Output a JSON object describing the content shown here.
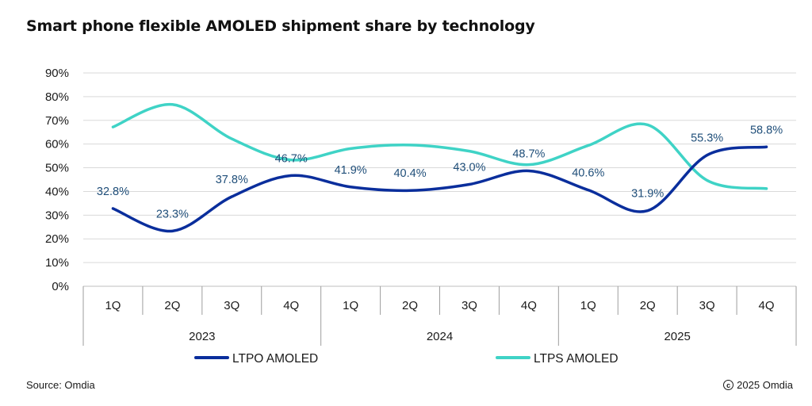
{
  "chart_data": {
    "type": "line",
    "title": "Smart phone flexible AMOLED shipment share by technology",
    "categories": [
      "1Q",
      "2Q",
      "3Q",
      "4Q",
      "1Q",
      "2Q",
      "3Q",
      "4Q",
      "1Q",
      "2Q",
      "3Q",
      "4Q"
    ],
    "years": [
      "2023",
      "2024",
      "2025"
    ],
    "ylim": [
      0,
      90
    ],
    "yticks": [
      "0%",
      "10%",
      "20%",
      "30%",
      "40%",
      "50%",
      "60%",
      "70%",
      "80%",
      "90%"
    ],
    "grid": true,
    "legend_position": "bottom",
    "series": [
      {
        "name": "LTPO AMOLED",
        "color": "#0a2e9c",
        "values": [
          32.8,
          23.3,
          37.8,
          46.7,
          41.9,
          40.4,
          43.0,
          48.7,
          40.6,
          31.9,
          55.3,
          58.8
        ],
        "labels": [
          "32.8%",
          "23.3%",
          "37.8%",
          "46.7%",
          "41.9%",
          "40.4%",
          "43.0%",
          "48.7%",
          "40.6%",
          "31.9%",
          "55.3%",
          "58.8%"
        ]
      },
      {
        "name": "LTPS AMOLED",
        "color": "#3fd3c6",
        "values": [
          67.2,
          76.7,
          62.2,
          53.3,
          58.1,
          59.6,
          57.0,
          51.3,
          59.4,
          68.1,
          44.7,
          41.2
        ]
      }
    ]
  },
  "footer": {
    "source": "Source: Omdia",
    "copyright_symbol": "c",
    "copyright": "2025 Omdia"
  }
}
